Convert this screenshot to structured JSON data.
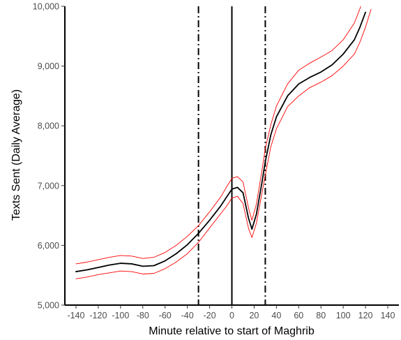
{
  "chart_data": {
    "type": "line",
    "xlabel": "Minute relative to start of Maghrib",
    "ylabel": "Texts Sent (Daily Average)",
    "xlim": [
      -150,
      150
    ],
    "ylim": [
      5000,
      10000
    ],
    "xticks": [
      -140,
      -120,
      -100,
      -80,
      -60,
      -40,
      -20,
      0,
      20,
      40,
      60,
      80,
      100,
      120,
      140
    ],
    "xtick_labels": [
      "-140",
      "-120",
      "-100",
      "-80",
      "-60",
      "-40",
      "-20",
      "0",
      "20",
      "40",
      "60",
      "80",
      "100",
      "120",
      "140"
    ],
    "yticks": [
      5000,
      6000,
      7000,
      8000,
      9000,
      10000
    ],
    "ytick_labels": [
      "5,000",
      "6,000",
      "7,000",
      "8,000",
      "9,000",
      "10,000"
    ],
    "grid": false,
    "legend": "none",
    "vlines": [
      {
        "x": -30,
        "style": "dashdot"
      },
      {
        "x": 0,
        "style": "solid"
      },
      {
        "x": 30,
        "style": "dashdot"
      }
    ],
    "series": [
      {
        "role": "estimate",
        "color": "#000000",
        "x": [
          -140,
          -130,
          -120,
          -110,
          -100,
          -90,
          -80,
          -70,
          -60,
          -50,
          -40,
          -30,
          -20,
          -10,
          -5,
          0,
          5,
          10,
          15,
          18,
          22,
          27,
          30,
          35,
          40,
          50,
          60,
          70,
          80,
          90,
          100,
          110,
          115,
          120
        ],
        "y": [
          5560,
          5590,
          5630,
          5670,
          5700,
          5690,
          5650,
          5660,
          5740,
          5860,
          6010,
          6200,
          6420,
          6660,
          6800,
          6940,
          6970,
          6880,
          6450,
          6270,
          6520,
          7050,
          7400,
          7850,
          8150,
          8500,
          8700,
          8810,
          8900,
          9020,
          9200,
          9440,
          9650,
          9900
        ]
      },
      {
        "role": "upper-bound",
        "color": "#ff0000",
        "x": [
          -140,
          -130,
          -120,
          -110,
          -100,
          -90,
          -80,
          -70,
          -60,
          -50,
          -40,
          -30,
          -20,
          -10,
          -5,
          0,
          5,
          10,
          15,
          18,
          22,
          27,
          30,
          35,
          40,
          50,
          60,
          70,
          80,
          90,
          100,
          110,
          115,
          120
        ],
        "y": [
          5690,
          5720,
          5760,
          5800,
          5830,
          5820,
          5780,
          5800,
          5880,
          6000,
          6150,
          6330,
          6560,
          6810,
          6970,
          7120,
          7150,
          7060,
          6620,
          6420,
          6690,
          7250,
          7620,
          8020,
          8330,
          8700,
          8930,
          9050,
          9150,
          9260,
          9440,
          9720,
          9960,
          10220
        ]
      },
      {
        "role": "lower-bound",
        "color": "#ff0000",
        "x": [
          -140,
          -130,
          -120,
          -110,
          -100,
          -90,
          -80,
          -70,
          -60,
          -50,
          -40,
          -30,
          -20,
          -10,
          -5,
          0,
          5,
          10,
          15,
          18,
          22,
          27,
          30,
          35,
          40,
          50,
          60,
          70,
          80,
          90,
          100,
          110,
          115,
          120,
          125
        ],
        "y": [
          5440,
          5470,
          5510,
          5540,
          5570,
          5560,
          5520,
          5530,
          5610,
          5720,
          5860,
          6050,
          6290,
          6530,
          6650,
          6790,
          6820,
          6700,
          6280,
          6130,
          6370,
          6870,
          7180,
          7650,
          7950,
          8320,
          8500,
          8640,
          8730,
          8840,
          9000,
          9200,
          9400,
          9650,
          9950
        ]
      }
    ]
  }
}
